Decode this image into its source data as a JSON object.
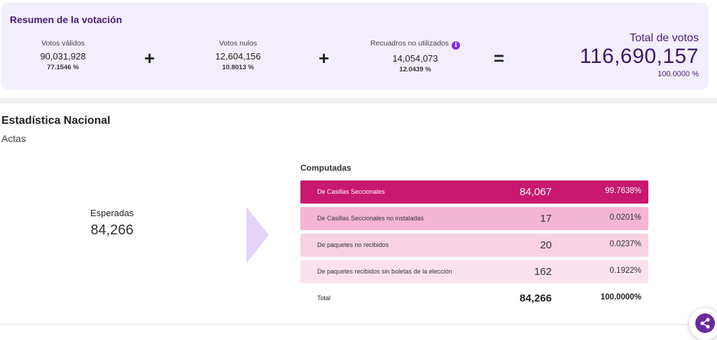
{
  "summary": {
    "title": "Resumen de la votación",
    "validos": {
      "label": "Votos válidos",
      "value": "90,031,928",
      "pct": "77.1546 %"
    },
    "nulos": {
      "label": "Votos nulos",
      "value": "12,604,156",
      "pct": "10.8013 %"
    },
    "recuadros": {
      "label": "Recuadros no utilizados",
      "value": "14,054,073",
      "pct": "12.0439 %"
    },
    "plus_sign": "+",
    "equals_sign": "=",
    "info_glyph": "i",
    "total": {
      "label": "Total de votos",
      "value": "116,690,157",
      "pct": "100.0000 %"
    }
  },
  "section": {
    "title": "Estadística Nacional",
    "subtitle": "Actas"
  },
  "esperadas": {
    "label": "Esperadas",
    "value": "84,266"
  },
  "computadas": {
    "title": "Computadas",
    "rows": [
      {
        "name": "De Casillas Seccionales",
        "value": "84,067",
        "pct": "99.7638%"
      },
      {
        "name": "De Casillas Seccionales no instaladas",
        "value": "17",
        "pct": "0.0201%"
      },
      {
        "name": "De paquetes no recibidos",
        "value": "20",
        "pct": "0.0237%"
      },
      {
        "name": "De paquetes recibidos sin boletas de la elección",
        "value": "162",
        "pct": "0.1922%"
      }
    ],
    "total": {
      "name": "Total",
      "value": "84,266",
      "pct": "100.0000%"
    }
  },
  "colors": {
    "accent_purple": "#4a1d7a",
    "row_primary": "#c8186f",
    "row_light_1": "#f4b6d2",
    "row_light_2": "#f8d2e3",
    "row_light_3": "#fbe2ee",
    "chevron": "#e4d4fb"
  },
  "icons": {
    "info": "info-icon",
    "chevron": "chevron-right-icon",
    "share": "share-icon"
  }
}
